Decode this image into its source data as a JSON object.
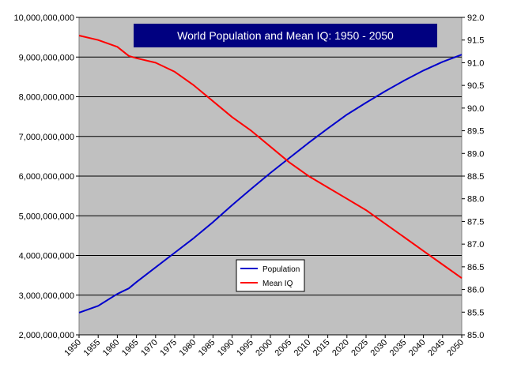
{
  "chart_data": {
    "type": "line",
    "title": "World Population and Mean IQ: 1950 - 2050",
    "legend_position": "center-left",
    "grid": true,
    "colors": {
      "plot_background": "#c0c0c0",
      "title_background": "#000080",
      "title_text": "#ffffff",
      "gridline": "#000000"
    },
    "x_axis": {
      "range": [
        1950,
        2050
      ],
      "tick_labels": [
        "1950",
        "1955",
        "1960",
        "1965",
        "1970",
        "1975",
        "1980",
        "1985",
        "1990",
        "1995",
        "2000",
        "2005",
        "2010",
        "2015",
        "2020",
        "2025",
        "2030",
        "2035",
        "2040",
        "2045",
        "2050"
      ]
    },
    "y_axis_left": {
      "range": [
        2000000000,
        10000000000
      ],
      "tick_labels": [
        "2,000,000,000",
        "3,000,000,000",
        "4,000,000,000",
        "5,000,000,000",
        "6,000,000,000",
        "7,000,000,000",
        "8,000,000,000",
        "9,000,000,000",
        "10,000,000,000"
      ]
    },
    "y_axis_right": {
      "range": [
        85.0,
        92.0
      ],
      "tick_labels": [
        "85.0",
        "85.5",
        "86.0",
        "86.5",
        "87.0",
        "87.5",
        "88.0",
        "88.5",
        "89.0",
        "89.5",
        "90.0",
        "90.5",
        "91.0",
        "91.5",
        "92.0"
      ]
    },
    "x": [
      1950,
      1955,
      1960,
      1963,
      1965,
      1970,
      1975,
      1980,
      1985,
      1990,
      1995,
      2000,
      2005,
      2010,
      2015,
      2020,
      2025,
      2030,
      2035,
      2040,
      2045,
      2050
    ],
    "series": [
      {
        "name": "Population",
        "axis": "left",
        "color": "#0000cc",
        "values": [
          2560000000,
          2730000000,
          3030000000,
          3170000000,
          3330000000,
          3700000000,
          4070000000,
          4440000000,
          4840000000,
          5270000000,
          5680000000,
          6080000000,
          6460000000,
          6840000000,
          7200000000,
          7550000000,
          7850000000,
          8140000000,
          8410000000,
          8660000000,
          8880000000,
          9060000000
        ]
      },
      {
        "name": "Mean IQ",
        "axis": "right",
        "color": "#ff0000",
        "values": [
          91.6,
          91.5,
          91.35,
          91.15,
          91.1,
          91.0,
          90.8,
          90.5,
          90.15,
          89.8,
          89.5,
          89.15,
          88.8,
          88.5,
          88.25,
          88.0,
          87.75,
          87.45,
          87.15,
          86.85,
          86.55,
          86.25
        ]
      }
    ]
  }
}
